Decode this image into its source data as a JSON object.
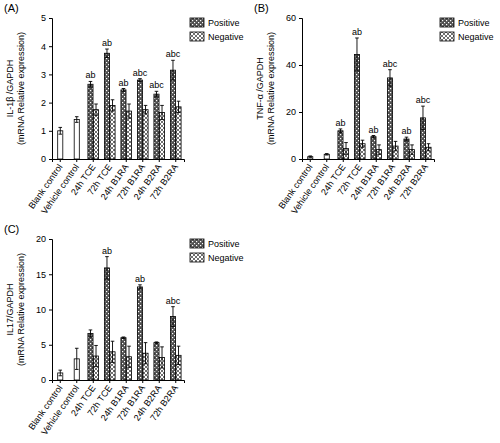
{
  "chart_data": [
    {
      "type": "bar",
      "title": "(A)",
      "y_label": [
        "IL-1β /GAPDH",
        "(mRNA Relative expression)"
      ],
      "categories": [
        "Blank control",
        "Vehicle control",
        "24h TCE",
        "72h TCE",
        "24h B1RA",
        "72h B1RA",
        "24h B2RA",
        "72h B2RA"
      ],
      "ylim": [
        0,
        5
      ],
      "yticks": [
        0,
        1,
        2,
        3,
        4,
        5
      ],
      "legend": "top-right",
      "series": [
        {
          "color": "#ffffff",
          "values": [
            1.0,
            1.4,
            null,
            null,
            null,
            null,
            null,
            null
          ],
          "errors": [
            0.12,
            0.1,
            null,
            null,
            null,
            null,
            null,
            null
          ]
        },
        {
          "name": "Positive",
          "color": "#505050",
          "values": [
            null,
            null,
            2.65,
            3.75,
            2.45,
            2.8,
            2.3,
            3.15
          ],
          "errors": [
            null,
            null,
            0.1,
            0.15,
            0.05,
            0.05,
            0.1,
            0.35
          ],
          "annotations": [
            null,
            null,
            "ab",
            "ab",
            "ab",
            "abc",
            "abc",
            "abc"
          ]
        },
        {
          "name": "Negative",
          "color": "#ffffff",
          "values": [
            null,
            null,
            1.75,
            1.9,
            1.7,
            1.75,
            1.65,
            1.85
          ],
          "errors": [
            null,
            null,
            0.2,
            0.2,
            0.25,
            0.15,
            0.25,
            0.2
          ]
        }
      ]
    },
    {
      "type": "bar",
      "title": "(B)",
      "y_label": [
        "TNF-α /GAPDH",
        "(mRNA Relative expression)"
      ],
      "categories": [
        "Blank control",
        "Vehicle control",
        "24h TCE",
        "72h TCE",
        "24h B1RA",
        "72h B1RA",
        "24h B2RA",
        "72h B2RA"
      ],
      "ylim": [
        0,
        60
      ],
      "yticks": [
        0,
        20,
        40,
        60
      ],
      "legend": "top-right",
      "series": [
        {
          "color": "#ffffff",
          "values": [
            1.0,
            2.0,
            null,
            null,
            null,
            null,
            null,
            null
          ],
          "errors": [
            0.3,
            0.3,
            null,
            null,
            null,
            null,
            null,
            null
          ]
        },
        {
          "name": "Positive",
          "color": "#505050",
          "values": [
            null,
            null,
            12,
            44.5,
            9.5,
            34.5,
            8.5,
            17.5
          ],
          "errors": [
            null,
            null,
            0.8,
            7,
            0.5,
            3.5,
            0.8,
            5
          ],
          "annotations": [
            null,
            null,
            "ab",
            "ab",
            "ab",
            "abc",
            "ab",
            "abc"
          ]
        },
        {
          "name": "Negative",
          "color": "#ffffff",
          "values": [
            null,
            null,
            4.5,
            6.5,
            4,
            5.5,
            4,
            5
          ],
          "errors": [
            null,
            null,
            2.5,
            1.5,
            2,
            2,
            2,
            1.5
          ]
        }
      ]
    },
    {
      "type": "bar",
      "title": "(C)",
      "y_label": [
        "IL17/GAPDH",
        "(mRNA Relative expression)"
      ],
      "categories": [
        "Blank control",
        "Vehicle control",
        "24h TCE",
        "72h TCE",
        "24h B1RA",
        "72h B1RA",
        "24h B2RA",
        "72h B2RA"
      ],
      "ylim": [
        0,
        20
      ],
      "yticks": [
        0,
        5,
        10,
        15,
        20
      ],
      "legend": "top-right",
      "series": [
        {
          "color": "#ffffff",
          "values": [
            1.0,
            3.0,
            null,
            null,
            null,
            null,
            null,
            null
          ],
          "errors": [
            0.4,
            1.5,
            null,
            null,
            null,
            null,
            null,
            null
          ]
        },
        {
          "name": "Positive",
          "color": "#505050",
          "values": [
            null,
            null,
            6.6,
            15.9,
            6.0,
            13.2,
            5.3,
            9.0
          ],
          "errors": [
            null,
            null,
            0.5,
            1.6,
            0.1,
            0.3,
            0.1,
            1.4
          ],
          "annotations": [
            null,
            null,
            null,
            "ab",
            null,
            "ab",
            null,
            "abc"
          ]
        },
        {
          "name": "Negative",
          "color": "#ffffff",
          "values": [
            null,
            null,
            3.4,
            4.0,
            3.3,
            3.8,
            3.2,
            3.5
          ],
          "errors": [
            null,
            null,
            1.5,
            1.5,
            1.5,
            1.5,
            1.5,
            1.3
          ]
        }
      ]
    }
  ]
}
